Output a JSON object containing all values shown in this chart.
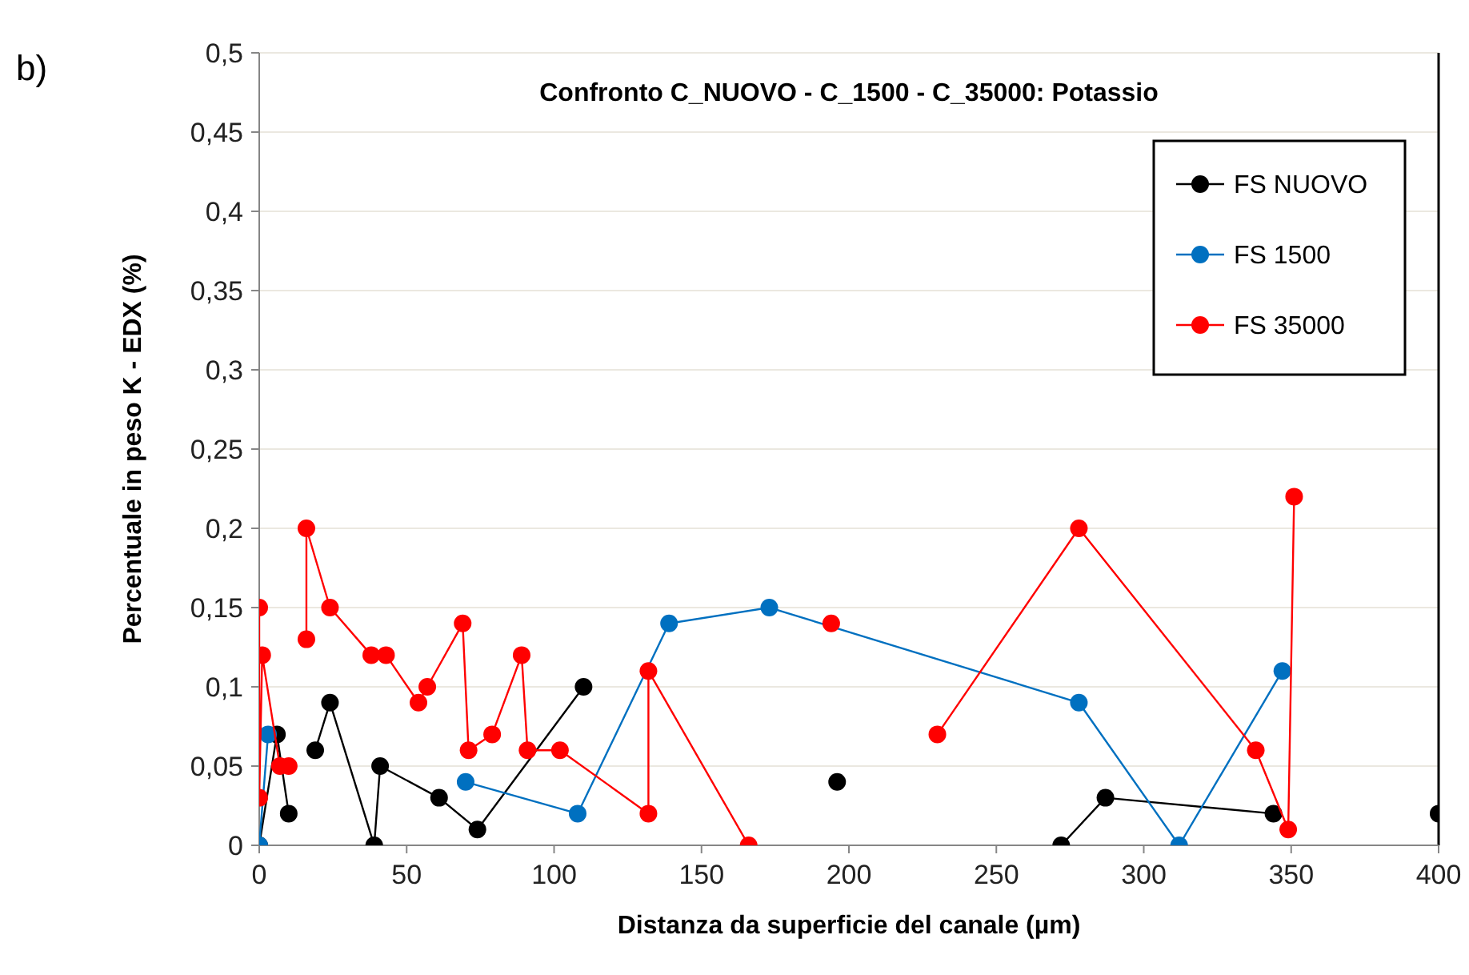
{
  "chart_data": {
    "type": "line",
    "title": "Confronto  C_NUOVO - C_1500 - C_35000:  Potassio",
    "xlabel": "Distanza da superficie del canale (µm)",
    "ylabel": "Percentuale in peso K - EDX (%)",
    "annotations": [
      "b)"
    ],
    "xlim": [
      0,
      400
    ],
    "xticks": [
      0,
      50,
      100,
      150,
      200,
      250,
      300,
      350,
      400
    ],
    "ylim": [
      0,
      0.5
    ],
    "yticks": [
      {
        "value": 0,
        "label": "0"
      },
      {
        "value": 0.05,
        "label": "0,05"
      },
      {
        "value": 0.1,
        "label": "0,1"
      },
      {
        "value": 0.15,
        "label": "0,15"
      },
      {
        "value": 0.2,
        "label": "0,2"
      },
      {
        "value": 0.25,
        "label": "0,25"
      },
      {
        "value": 0.3,
        "label": "0,3"
      },
      {
        "value": 0.35,
        "label": "0,35"
      },
      {
        "value": 0.4,
        "label": "0,4"
      },
      {
        "value": 0.45,
        "label": "0,45"
      },
      {
        "value": 0.5,
        "label": "0,5"
      }
    ],
    "grid": "y",
    "legend": "top right",
    "marker": "circle",
    "series": [
      {
        "name": "FS NUOVO",
        "color": "#000000",
        "x": [
          0,
          6,
          10,
          14,
          19,
          24,
          39,
          41,
          61,
          74,
          110,
          150,
          196,
          230,
          272,
          287,
          344,
          370,
          400
        ],
        "values": [
          0,
          0.07,
          0.02,
          null,
          0.06,
          0.09,
          0,
          0.05,
          0.03,
          0.01,
          0.1,
          null,
          0.04,
          null,
          0,
          0.03,
          0.02,
          null,
          0.02
        ]
      },
      {
        "name": "FS 1500",
        "color": "#0070c0",
        "x": [
          0,
          3,
          37,
          70,
          108,
          139,
          173,
          278,
          312,
          347
        ],
        "values": [
          0,
          0.07,
          null,
          0.04,
          0.02,
          0.14,
          0.15,
          0.09,
          0,
          0.11
        ]
      },
      {
        "name": "FS 35000",
        "color": "#ff0000",
        "x": [
          0,
          0,
          1,
          7,
          10,
          13,
          16,
          16,
          24,
          38,
          43,
          54,
          57,
          69,
          71,
          79,
          89,
          91,
          102,
          132,
          132,
          166,
          180,
          194,
          210,
          230,
          278,
          338,
          349,
          351
        ],
        "values": [
          0.15,
          0.03,
          0.12,
          0.05,
          0.05,
          null,
          0.13,
          0.2,
          0.15,
          0.12,
          0.12,
          0.09,
          0.1,
          0.14,
          0.06,
          0.07,
          0.12,
          0.06,
          0.06,
          0.02,
          0.11,
          0,
          null,
          0.14,
          null,
          0.07,
          0.2,
          0.06,
          0.01,
          0.22
        ]
      }
    ]
  }
}
